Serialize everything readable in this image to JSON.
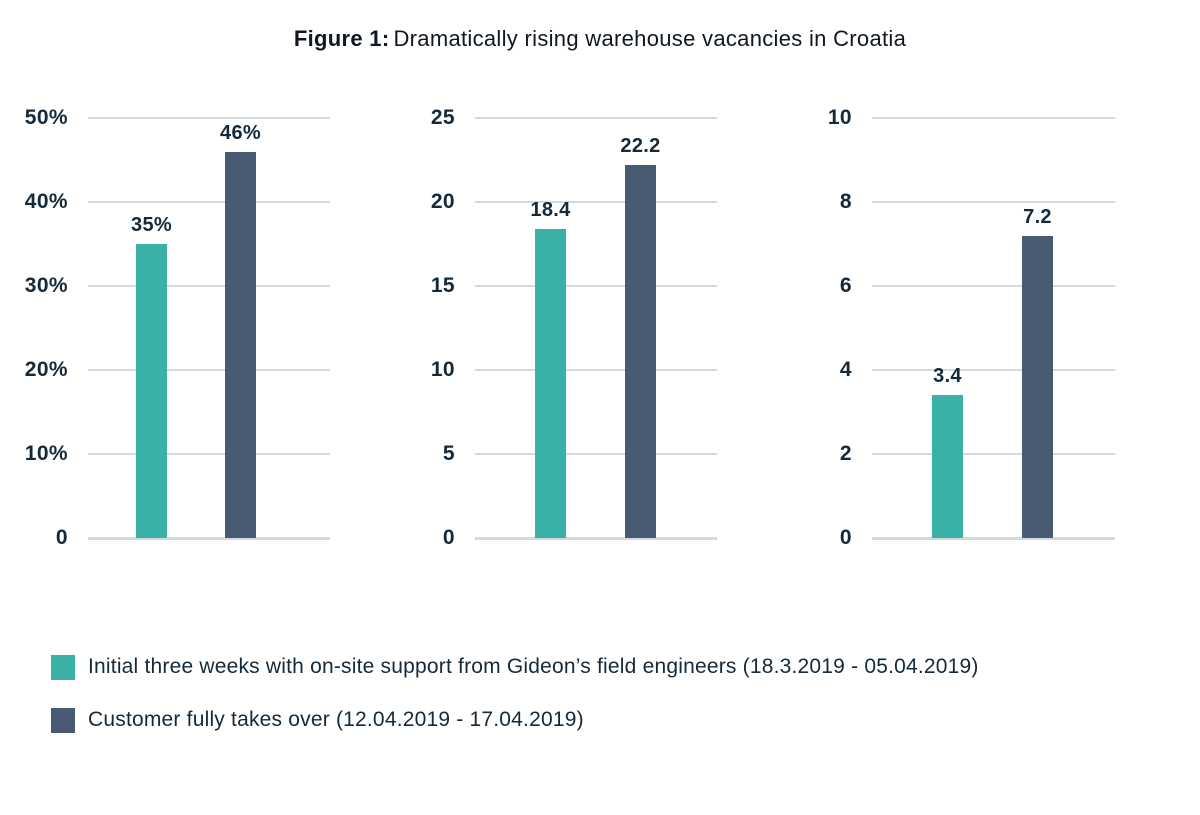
{
  "title": {
    "prefix": "Figure 1:",
    "text": "Dramatically rising warehouse vacancies in Croatia"
  },
  "colors": {
    "teal": "#3AB1A7",
    "slate": "#495B72",
    "text_navy": "#14293A",
    "title_text": "#101722",
    "gridline": "#D4D9DE",
    "background": "#FFFFFF"
  },
  "chart_data": {
    "type": "bar",
    "title": "Figure 1: Dramatically rising warehouse vacancies in Croatia",
    "grid": true,
    "legend_position": "bottom-left",
    "series": [
      {
        "name": "Initial three weeks with on-site support from Gideon’s field engineers (18.3.2019 - 05.04.2019)",
        "color": "#3AB1A7"
      },
      {
        "name": "Customer fully takes over (12.04.2019 - 17.04.2019)",
        "color": "#495B72"
      }
    ],
    "panels": [
      {
        "ylim": [
          0,
          50
        ],
        "yticks": [
          "50%",
          "40%",
          "30%",
          "20%",
          "10%",
          "0"
        ],
        "bars": [
          {
            "series": 0,
            "value": 35,
            "label": "35%"
          },
          {
            "series": 1,
            "value": 46,
            "label": "46%"
          }
        ]
      },
      {
        "ylim": [
          0,
          25
        ],
        "yticks": [
          "25",
          "20",
          "15",
          "10",
          "5",
          "0"
        ],
        "bars": [
          {
            "series": 0,
            "value": 18.4,
            "label": "18.4"
          },
          {
            "series": 1,
            "value": 22.2,
            "label": "22.2"
          }
        ]
      },
      {
        "ylim": [
          0,
          10
        ],
        "yticks": [
          "10",
          "8",
          "6",
          "4",
          "2",
          "0"
        ],
        "bars": [
          {
            "series": 0,
            "value": 3.4,
            "label": "3.4"
          },
          {
            "series": 1,
            "value": 7.2,
            "label": "7.2"
          }
        ]
      }
    ]
  }
}
